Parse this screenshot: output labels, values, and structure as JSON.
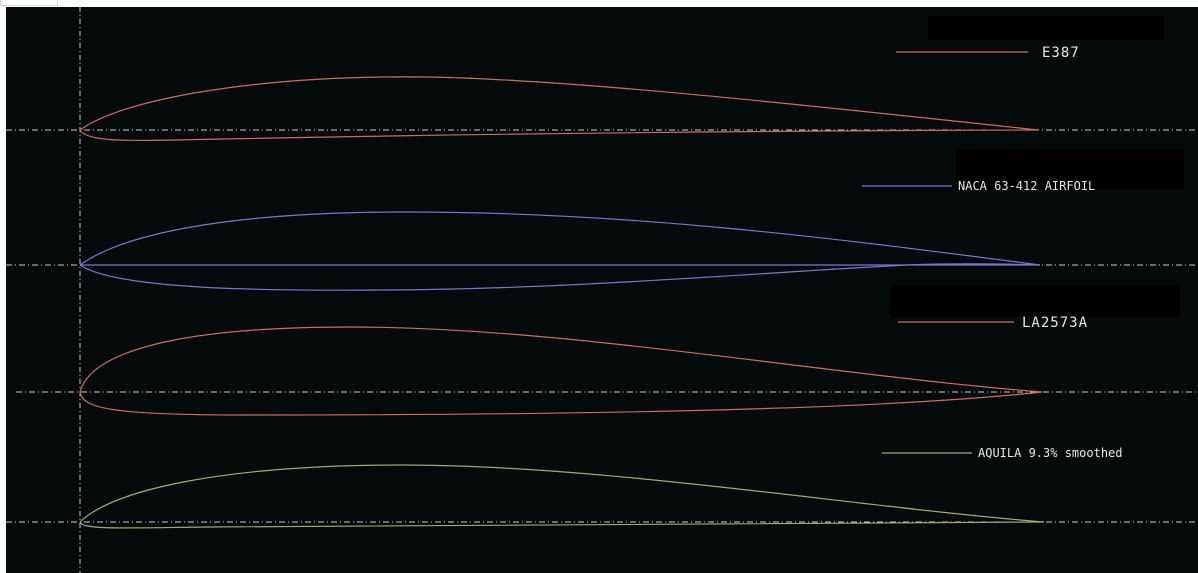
{
  "colors": {
    "background": "#050a0b",
    "guides": "#c8ccd0",
    "E387": "#d46a62",
    "NACA 63-412 AIRFOIL": "#7f74d6",
    "LA2573A": "#d46a62",
    "AQUILA 9.3% smoothed": "#a8a86a",
    "redaction": "#000000"
  },
  "airfoils": [
    {
      "id": "e387",
      "name": "E387"
    },
    {
      "id": "naca",
      "name": "NACA 63-412 AIRFOIL"
    },
    {
      "id": "la2573a",
      "name": "LA2573A"
    },
    {
      "id": "aquila",
      "name": "AQUILA 9.3% smoothed"
    }
  ]
}
